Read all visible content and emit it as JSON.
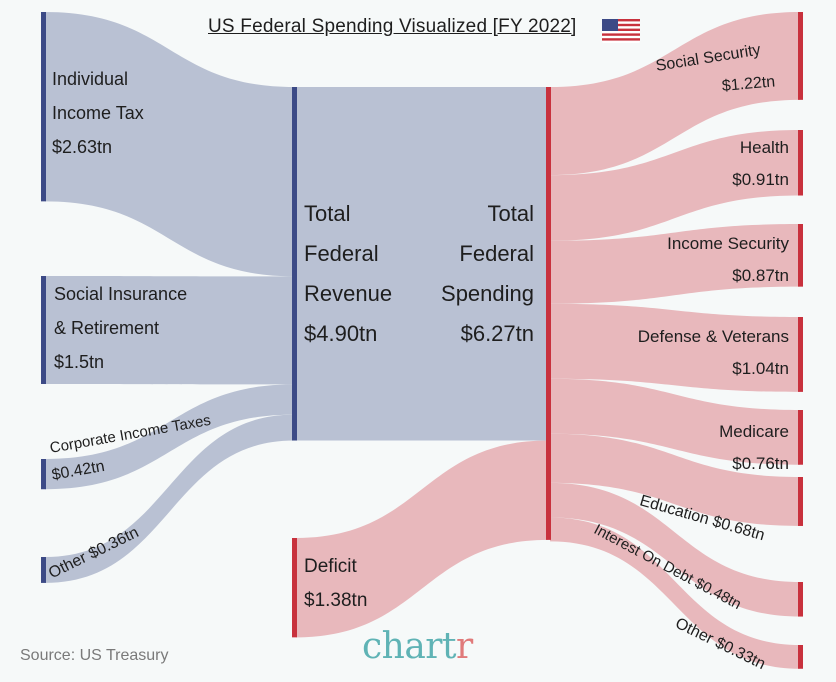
{
  "title": "US Federal Spending Visualized [FY 2022]",
  "source": "Source: US Treasury",
  "brand": {
    "main": "chart",
    "accent": "r"
  },
  "colors": {
    "background": "#f6f9f9",
    "revenue_flow": "#b9c1d3",
    "spending_flow": "#e8b8bc",
    "revenue_bar": "#3c4a86",
    "spending_bar": "#c8313d",
    "brand": "#5fb3b5"
  },
  "revenue_labels": {
    "individual": [
      "Individual",
      "Income Tax",
      "$2.63tn"
    ],
    "social": [
      "Social Insurance",
      "& Retirement",
      "$1.5tn"
    ],
    "corporate": [
      "Corporate Income Taxes",
      "$0.42tn"
    ],
    "other": "Other $0.36tn"
  },
  "center_labels": {
    "revenue": [
      "Total",
      "Federal",
      "Revenue",
      "$4.90tn"
    ],
    "spending": [
      "Total",
      "Federal",
      "Spending",
      "$6.27tn"
    ],
    "deficit": [
      "Deficit",
      "$1.38tn"
    ]
  },
  "spending_labels": {
    "social_security": [
      "Social Security",
      "$1.22tn"
    ],
    "health": [
      "Health",
      "$0.91tn"
    ],
    "income_security": [
      "Income Security",
      "$0.87tn"
    ],
    "defense": [
      "Defense & Veterans",
      "$1.04tn"
    ],
    "medicare": [
      "Medicare",
      "$0.76tn"
    ],
    "education": "Education $0.68tn",
    "interest": "Interest On Debt $0.48tn",
    "other": "Other $0.33tn"
  },
  "chart_data": {
    "type": "sankey",
    "title": "US Federal Spending Visualized [FY 2022]",
    "unit": "$ trillion",
    "revenue_sources": [
      {
        "name": "Individual Income Tax",
        "value": 2.63
      },
      {
        "name": "Social Insurance & Retirement",
        "value": 1.5
      },
      {
        "name": "Corporate Income Taxes",
        "value": 0.42
      },
      {
        "name": "Other",
        "value": 0.36
      }
    ],
    "total_revenue": 4.9,
    "deficit": 1.38,
    "total_spending": 6.27,
    "spending_categories": [
      {
        "name": "Social Security",
        "value": 1.22
      },
      {
        "name": "Health",
        "value": 0.91
      },
      {
        "name": "Income Security",
        "value": 0.87
      },
      {
        "name": "Defense & Veterans",
        "value": 1.04
      },
      {
        "name": "Medicare",
        "value": 0.76
      },
      {
        "name": "Education",
        "value": 0.68
      },
      {
        "name": "Interest On Debt",
        "value": 0.48
      },
      {
        "name": "Other",
        "value": 0.33
      }
    ]
  }
}
